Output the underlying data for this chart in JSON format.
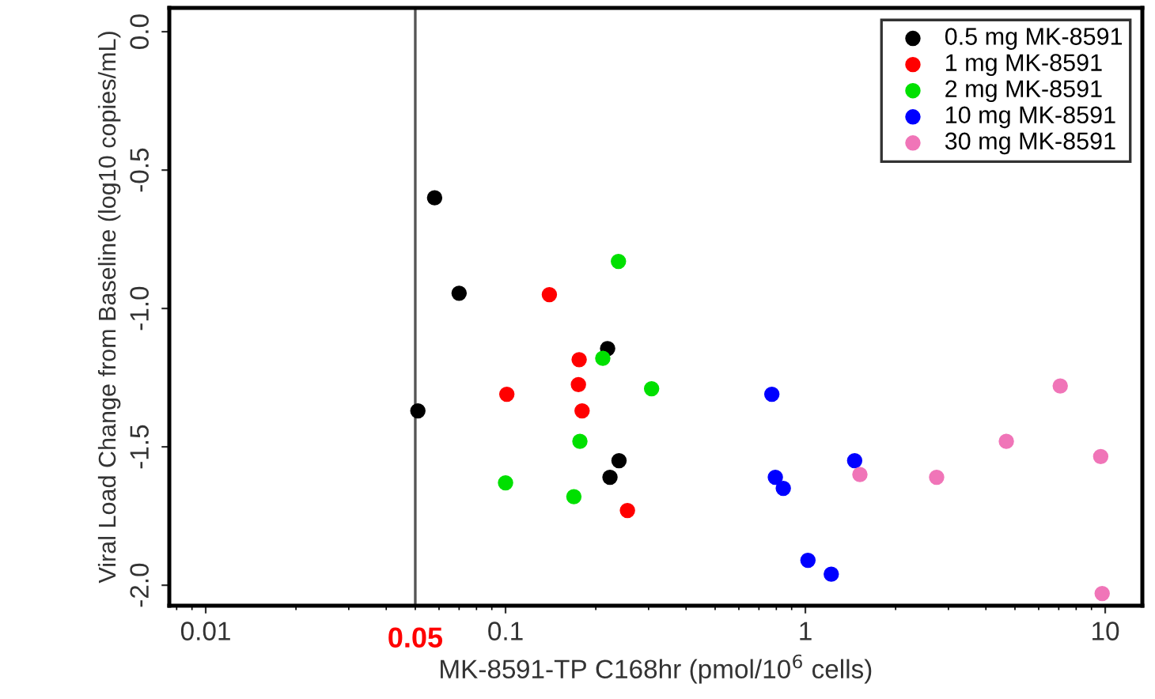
{
  "chart_data": {
    "type": "scatter",
    "xlabel": "MK-8591-TP C168hr (pmol/10$^{6}$ cells)",
    "ylabel": "Viral Load Change from Baseline (log10 copies/mL)",
    "log": "x",
    "xlim": [
      0.00756,
      13.3
    ],
    "ylim": [
      -2.074,
      0.086
    ],
    "xticks": [
      0.01,
      0.1,
      1,
      10
    ],
    "yticks": [
      {
        "value": 0,
        "label": "0.0"
      },
      -0.5,
      {
        "value": -1,
        "label": "-1.0"
      },
      -1.5,
      {
        "value": -2,
        "label": "-2.0"
      }
    ],
    "grid": false,
    "legend": "top right",
    "marker": "circle",
    "ref_lines": [
      {
        "axis": "x",
        "value": 0.05,
        "label": "0.05",
        "color": "#555555"
      }
    ],
    "series": [
      {
        "name": "0.5 mg MK-8591",
        "color": "#000000",
        "x": [
          0.058,
          0.07,
          0.051,
          0.219,
          0.239,
          0.223
        ],
        "values": [
          -0.6,
          -0.945,
          -1.37,
          -1.145,
          -1.55,
          -1.61
        ]
      },
      {
        "name": "1 mg MK-8591",
        "color": "#ff0000",
        "x": [
          0.14,
          0.101,
          0.176,
          0.175,
          0.18,
          0.255
        ],
        "values": [
          -0.95,
          -1.31,
          -1.185,
          -1.275,
          -1.37,
          -1.73
        ]
      },
      {
        "name": "2 mg MK-8591",
        "color": "#00e000",
        "x": [
          0.238,
          0.211,
          0.307,
          0.177,
          0.1,
          0.169
        ],
        "values": [
          -0.83,
          -1.18,
          -1.29,
          -1.48,
          -1.63,
          -1.68
        ]
      },
      {
        "name": "10 mg MK-8591",
        "color": "#0000ff",
        "x": [
          0.773,
          1.46,
          0.794,
          0.844,
          1.02,
          1.22
        ],
        "values": [
          -1.31,
          -1.55,
          -1.61,
          -1.65,
          -1.91,
          -1.96
        ]
      },
      {
        "name": "30 mg MK-8591",
        "color": "#f075b8",
        "x": [
          7.08,
          4.68,
          9.66,
          1.52,
          2.74,
          9.77
        ],
        "values": [
          -1.28,
          -1.48,
          -1.535,
          -1.6,
          -1.61,
          -2.03
        ]
      }
    ]
  }
}
